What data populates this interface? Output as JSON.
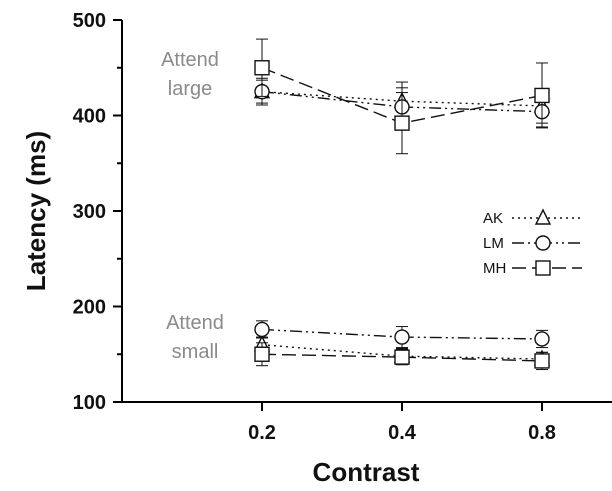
{
  "chart_data": {
    "type": "line",
    "xlabel": "Contrast",
    "ylabel": "Latency (ms)",
    "categories": [
      "0.2",
      "0.4",
      "0.8"
    ],
    "ylim": [
      100,
      500
    ],
    "yticks": [
      "100",
      "200",
      "300",
      "400",
      "500"
    ],
    "grid": false,
    "legend_position": "right",
    "annotations": [
      {
        "id": "attend-large",
        "lines": [
          "Attend",
          "large"
        ]
      },
      {
        "id": "attend-small",
        "lines": [
          "Attend",
          "small"
        ]
      }
    ],
    "series": [
      {
        "name": "AK",
        "marker": "triangle",
        "dash": "dotted",
        "condition": "large",
        "values": [
          425,
          415,
          410
        ],
        "err": [
          12,
          20,
          18
        ]
      },
      {
        "name": "LM",
        "marker": "circle",
        "dash": "dash-dot-dot",
        "condition": "large",
        "values": [
          425,
          409,
          404
        ],
        "err": [
          14,
          20,
          16
        ]
      },
      {
        "name": "MH",
        "marker": "square",
        "dash": "long-dash",
        "condition": "large",
        "values": [
          450,
          392,
          421
        ],
        "err": [
          30,
          32,
          34
        ]
      },
      {
        "name": "AK",
        "marker": "triangle",
        "dash": "dotted",
        "condition": "small",
        "values": [
          160,
          148,
          145
        ],
        "err": [
          8,
          8,
          7
        ]
      },
      {
        "name": "LM",
        "marker": "circle",
        "dash": "dash-dot-dot",
        "condition": "small",
        "values": [
          176,
          168,
          166
        ],
        "err": [
          9,
          11,
          9
        ]
      },
      {
        "name": "MH",
        "marker": "square",
        "dash": "long-dash",
        "condition": "small",
        "values": [
          150,
          147,
          143
        ],
        "err": [
          12,
          8,
          9
        ]
      }
    ],
    "legend": [
      {
        "label": "AK",
        "marker": "triangle",
        "dash": "dotted"
      },
      {
        "label": "LM",
        "marker": "circle",
        "dash": "dash-dot-dot"
      },
      {
        "label": "MH",
        "marker": "square",
        "dash": "long-dash"
      }
    ]
  }
}
